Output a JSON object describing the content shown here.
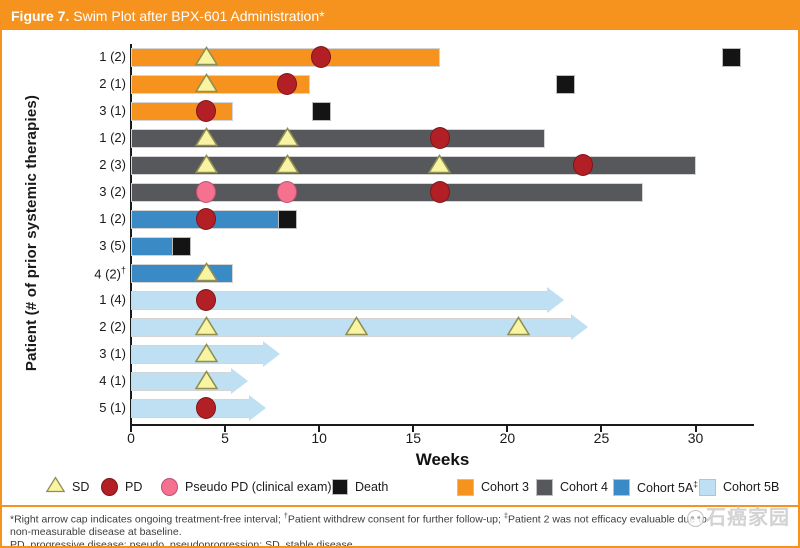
{
  "title": {
    "prefix": "Figure 7.",
    "rest": " Swim Plot after BPX-601 Administration*"
  },
  "watermark": "石癌家园",
  "footnotes": {
    "line1": "*Right arrow cap indicates ongoing treatment-free interval; †Patient withdrew consent for further follow-up; ‡Patient 2 was not efficacy evaluable due to",
    "line2": "non-measurable disease at baseline.",
    "line3": "PD, progressive disease; pseudo, pseudoprogression; SD, stable disease."
  },
  "colors": {
    "header": "#F6921E",
    "cohort3": "#F6921E",
    "cohort4": "#56585C",
    "cohort5a": "#3A8AC6",
    "cohort5b": "#BEE0F2",
    "sd_fill": "#F8F4A2",
    "sd_border": "#8F8F53",
    "pd_fill": "#B22025",
    "pd_border": "#801317",
    "pseudo_fill": "#F4718F",
    "pseudo_border": "#C14F6E",
    "death": "#141414"
  },
  "chart_data": {
    "type": "bar",
    "subtype": "swimmer-plot",
    "title": "Swim Plot after BPX-601 Administration",
    "xlabel": "Weeks",
    "ylabel": "Patient (# of prior systemic therapies)",
    "xlim": [
      0,
      33
    ],
    "xticks": [
      0,
      5,
      10,
      15,
      20,
      25,
      30
    ],
    "grid": false,
    "legend_position": "bottom",
    "legend_markers": [
      {
        "type": "SD",
        "label": "SD"
      },
      {
        "type": "PD",
        "label": "PD"
      },
      {
        "type": "PseudoPD",
        "label": "Pseudo PD (clinical exam)"
      },
      {
        "type": "Death",
        "label": "Death"
      }
    ],
    "legend_cohorts": [
      {
        "key": "cohort3",
        "label": "Cohort 3"
      },
      {
        "key": "cohort4",
        "label": "Cohort 4"
      },
      {
        "key": "cohort5a",
        "label": "Cohort 5A‡"
      },
      {
        "key": "cohort5b",
        "label": "Cohort 5B"
      }
    ],
    "rows": [
      {
        "label": "1 (2)",
        "cohort": "cohort3",
        "bar_end_week": 16.4,
        "ongoing_arrow": false,
        "events": [
          {
            "type": "SD",
            "week": 4.0
          },
          {
            "type": "PD",
            "week": 10.1
          },
          {
            "type": "Death",
            "week": 31.9
          }
        ]
      },
      {
        "label": "2 (1)",
        "cohort": "cohort3",
        "bar_end_week": 9.5,
        "ongoing_arrow": false,
        "events": [
          {
            "type": "SD",
            "week": 4.0
          },
          {
            "type": "PD",
            "week": 8.3
          },
          {
            "type": "Death",
            "week": 23.1
          }
        ]
      },
      {
        "label": "3 (1)",
        "cohort": "cohort3",
        "bar_end_week": 5.4,
        "ongoing_arrow": false,
        "events": [
          {
            "type": "PD",
            "week": 4.0
          },
          {
            "type": "Death",
            "week": 10.1
          }
        ]
      },
      {
        "label": "1 (2)",
        "cohort": "cohort4",
        "bar_end_week": 22.0,
        "ongoing_arrow": false,
        "events": [
          {
            "type": "SD",
            "week": 4.0
          },
          {
            "type": "SD",
            "week": 8.3
          },
          {
            "type": "PD",
            "week": 16.4
          }
        ]
      },
      {
        "label": "2 (3)",
        "cohort": "cohort4",
        "bar_end_week": 30.0,
        "ongoing_arrow": false,
        "events": [
          {
            "type": "SD",
            "week": 4.0
          },
          {
            "type": "SD",
            "week": 8.3
          },
          {
            "type": "SD",
            "week": 16.4
          },
          {
            "type": "PD",
            "week": 24.0
          }
        ]
      },
      {
        "label": "3 (2)",
        "cohort": "cohort4",
        "bar_end_week": 27.2,
        "ongoing_arrow": false,
        "events": [
          {
            "type": "PseudoPD",
            "week": 4.0
          },
          {
            "type": "PseudoPD",
            "week": 8.3
          },
          {
            "type": "PD",
            "week": 16.4
          }
        ]
      },
      {
        "label": "1 (2)",
        "cohort": "cohort5a",
        "bar_end_week": 8.7,
        "ongoing_arrow": false,
        "events": [
          {
            "type": "PD",
            "week": 4.0
          },
          {
            "type": "Death",
            "week": 8.3
          }
        ]
      },
      {
        "label": "3 (5)",
        "cohort": "cohort5a",
        "bar_end_week": 2.3,
        "ongoing_arrow": false,
        "events": [
          {
            "type": "Death",
            "week": 2.7
          }
        ]
      },
      {
        "label": "4 (2)†",
        "cohort": "cohort5a",
        "bar_end_week": 5.4,
        "ongoing_arrow": false,
        "events": [
          {
            "type": "SD",
            "week": 4.0
          }
        ]
      },
      {
        "label": "1 (4)",
        "cohort": "cohort5b",
        "bar_end_week": 23.0,
        "ongoing_arrow": true,
        "events": [
          {
            "type": "PD",
            "week": 4.0
          }
        ]
      },
      {
        "label": "2 (2)",
        "cohort": "cohort5b",
        "bar_end_week": 24.3,
        "ongoing_arrow": true,
        "events": [
          {
            "type": "SD",
            "week": 4.0
          },
          {
            "type": "SD",
            "week": 12.0
          },
          {
            "type": "SD",
            "week": 20.6
          }
        ]
      },
      {
        "label": "3 (1)",
        "cohort": "cohort5b",
        "bar_end_week": 7.9,
        "ongoing_arrow": true,
        "events": [
          {
            "type": "SD",
            "week": 4.0
          }
        ]
      },
      {
        "label": "4 (1)",
        "cohort": "cohort5b",
        "bar_end_week": 6.2,
        "ongoing_arrow": true,
        "events": [
          {
            "type": "SD",
            "week": 4.0
          }
        ]
      },
      {
        "label": "5 (1)",
        "cohort": "cohort5b",
        "bar_end_week": 7.2,
        "ongoing_arrow": true,
        "events": [
          {
            "type": "PD",
            "week": 4.0
          }
        ]
      }
    ]
  }
}
